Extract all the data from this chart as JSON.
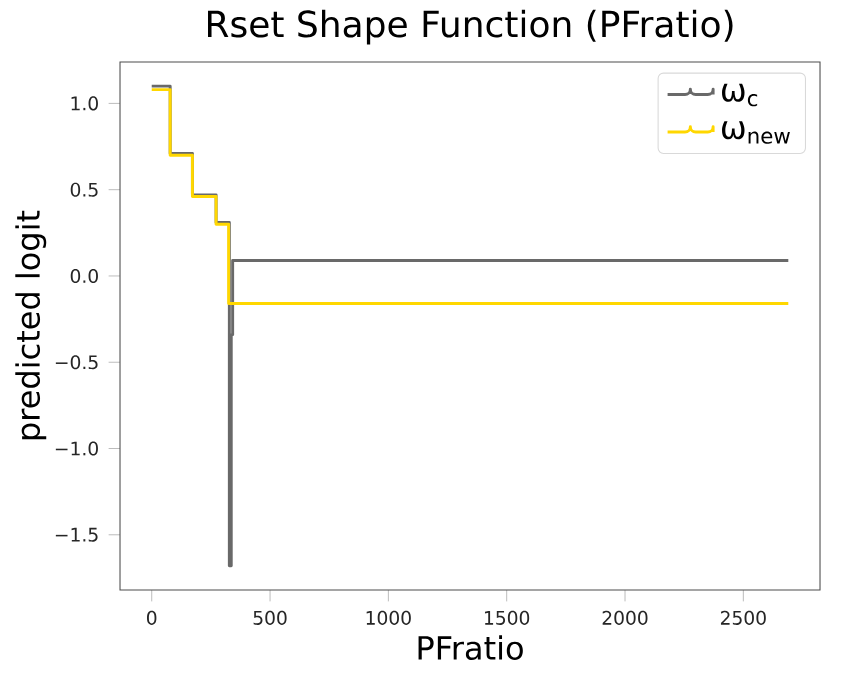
{
  "chart_data": {
    "type": "step",
    "title": "Rset Shape Function (PFratio)",
    "xlabel": "PFratio",
    "ylabel": "predicted logit",
    "xlim": [
      -134,
      2824
    ],
    "ylim": [
      -1.82,
      1.24
    ],
    "xticks": [
      0,
      500,
      1000,
      1500,
      2000,
      2500
    ],
    "yticks": [
      {
        "value": -1.5,
        "label": "−1.5"
      },
      {
        "value": -1.0,
        "label": "−1.0"
      },
      {
        "value": -0.5,
        "label": "−0.5"
      },
      {
        "value": 0,
        "label": "0.0"
      },
      {
        "value": 0.5,
        "label": "0.5"
      },
      {
        "value": 1.0,
        "label": "1.0"
      }
    ],
    "legend": "top right",
    "grid": false,
    "series": [
      {
        "name": "ω$_{c}$",
        "color": "#696969",
        "x": [
          0,
          78,
          172,
          272,
          328,
          336,
          342,
          2690
        ],
        "values": [
          1.1,
          0.71,
          0.47,
          0.31,
          -1.68,
          -0.34,
          0.09,
          0.09
        ]
      },
      {
        "name": "ω$_{new}$",
        "color": "#ffd700",
        "x": [
          0,
          78,
          172,
          272,
          325,
          2690
        ],
        "values": [
          1.08,
          0.7,
          0.46,
          0.3,
          -0.16,
          -0.16
        ]
      }
    ]
  }
}
